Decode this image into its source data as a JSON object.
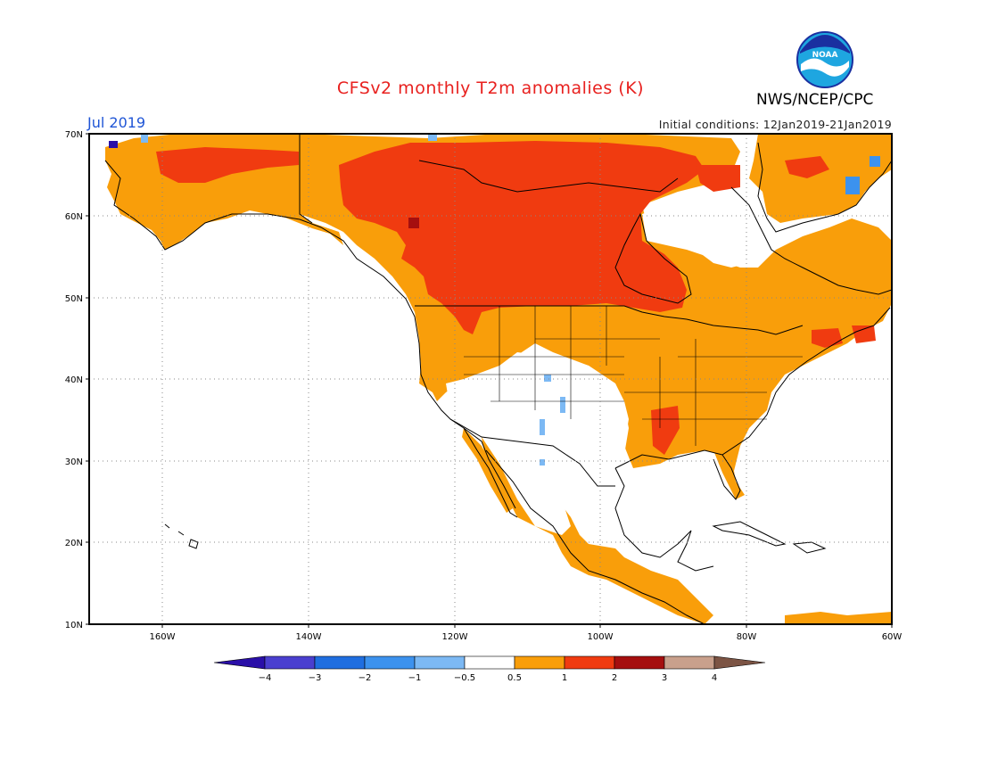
{
  "title": "CFSv2 monthly T2m anomalies (K)",
  "org": "NWS/NCEP/CPC",
  "logo_text": "NOAA",
  "month": "Jul 2019",
  "initial_conditions": "Initial conditions: 12Jan2019-21Jan2019",
  "lat_labels": [
    "70N",
    "60N",
    "50N",
    "40N",
    "30N",
    "20N",
    "10N"
  ],
  "lon_labels": [
    "160W",
    "140W",
    "120W",
    "100W",
    "80W",
    "60W"
  ],
  "colorbar": {
    "labels": [
      "-4",
      "-3",
      "-2",
      "-1",
      "-0.5",
      "0.5",
      "1",
      "2",
      "3",
      "4"
    ],
    "colors": [
      "#2a0fa8",
      "#4a3fcf",
      "#1f6ee0",
      "#3c92ee",
      "#7cb9f4",
      "#ffffff",
      "#f99e0a",
      "#f03b10",
      "#a50f0f",
      "#c9a08c",
      "#7c5444"
    ]
  },
  "colors": {
    "warm_05_1": "#f99e0a",
    "warm_1_2": "#f03b10",
    "warm_2_3": "#a50f0f",
    "cool_05_1": "#7cb9f4",
    "cool_1_2": "#3c92ee",
    "title": "#e8211f",
    "month": "#1f55d6"
  }
}
